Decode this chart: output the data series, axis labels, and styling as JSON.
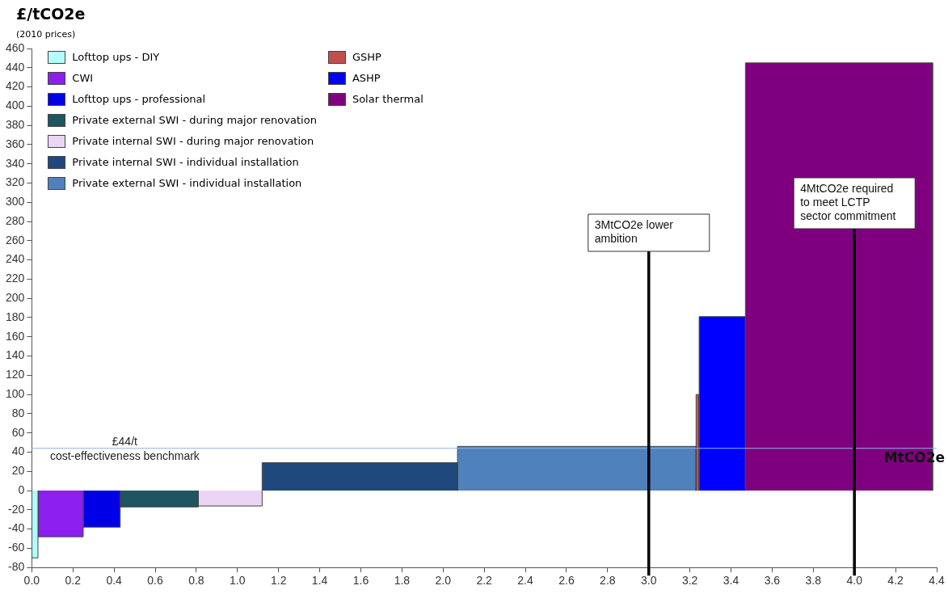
{
  "chart_data": {
    "type": "histogram",
    "ylabel": "£/tCO2e",
    "subtitle": "(2010 prices)",
    "xlabel": "MtCO2e",
    "xlim": [
      0,
      4.4
    ],
    "xticks": [
      {
        "value": 0,
        "label": "0.0"
      },
      {
        "value": 0.2,
        "label": "0.2"
      },
      {
        "value": 0.4,
        "label": "0.4"
      },
      {
        "value": 0.6,
        "label": "0.6"
      },
      {
        "value": 0.8,
        "label": "0.8"
      },
      {
        "value": 1,
        "label": "1.0"
      },
      {
        "value": 1.2,
        "label": "1.2"
      },
      {
        "value": 1.4,
        "label": "1.4"
      },
      {
        "value": 1.6,
        "label": "1.6"
      },
      {
        "value": 1.8,
        "label": "1.8"
      },
      {
        "value": 2,
        "label": "2.0"
      },
      {
        "value": 2.2,
        "label": "2.2"
      },
      {
        "value": 2.4,
        "label": "2.4"
      },
      {
        "value": 2.6,
        "label": "2.6"
      },
      {
        "value": 2.8,
        "label": "2.8"
      },
      {
        "value": 3,
        "label": "3.0"
      },
      {
        "value": 3.2,
        "label": "3.2"
      },
      {
        "value": 3.4,
        "label": "3.4"
      },
      {
        "value": 3.6,
        "label": "3.6"
      },
      {
        "value": 3.8,
        "label": "3.8"
      },
      {
        "value": 4,
        "label": "4.0"
      },
      {
        "value": 4.2,
        "label": "4.2"
      },
      {
        "value": 4.4,
        "label": "4.4"
      }
    ],
    "ylim": [
      -80,
      460
    ],
    "yticks": [
      -80,
      -60,
      -40,
      -20,
      0,
      20,
      40,
      60,
      80,
      100,
      120,
      140,
      160,
      180,
      200,
      220,
      240,
      260,
      280,
      300,
      320,
      340,
      360,
      380,
      400,
      420,
      440,
      460
    ],
    "legend": "top left",
    "bins": [
      0,
      0.03,
      0.25,
      0.43,
      0.81,
      1.12,
      2.07,
      3.23,
      3.245,
      3.47,
      4.38
    ],
    "series": [
      {
        "name": "Lofttop ups - DIY",
        "color": "#b3fcfc",
        "values": [
          -70,
          null,
          null,
          null,
          null,
          null,
          null,
          null,
          null,
          null
        ]
      },
      {
        "name": "CWI",
        "color": "#8c1ff0",
        "values": [
          null,
          -48,
          null,
          null,
          null,
          null,
          null,
          null,
          null,
          null
        ]
      },
      {
        "name": "Lofttop ups - professional",
        "color": "#0000e6",
        "values": [
          null,
          null,
          -38,
          null,
          null,
          null,
          null,
          null,
          null,
          null
        ]
      },
      {
        "name": "Private external SWI - during major renovation",
        "color": "#1f5461",
        "values": [
          null,
          null,
          null,
          -17,
          null,
          null,
          null,
          null,
          null,
          null
        ]
      },
      {
        "name": "Private internal SWI - during major renovation",
        "color": "#ead5f5",
        "values": [
          null,
          null,
          null,
          null,
          -16,
          null,
          null,
          null,
          null,
          null
        ]
      },
      {
        "name": "Private internal SWI - individual installation",
        "color": "#1f497d",
        "values": [
          null,
          null,
          null,
          null,
          null,
          29,
          null,
          null,
          null,
          null
        ]
      },
      {
        "name": "Private external SWI - individual installation",
        "color": "#4f81bd",
        "values": [
          null,
          null,
          null,
          null,
          null,
          null,
          46,
          null,
          null,
          null
        ]
      },
      {
        "name": "GSHP",
        "color": "#c0504d",
        "values": [
          null,
          null,
          null,
          null,
          null,
          null,
          null,
          100,
          null,
          null
        ]
      },
      {
        "name": "ASHP",
        "color": "#0000ff",
        "values": [
          null,
          null,
          null,
          null,
          null,
          null,
          null,
          null,
          181,
          null
        ]
      },
      {
        "name": "Solar thermal",
        "color": "#7f007f",
        "values": [
          null,
          null,
          null,
          null,
          null,
          null,
          null,
          null,
          null,
          445
        ]
      }
    ],
    "ref_lines": [
      {
        "axis": "y",
        "value": 44,
        "label": "£44/t\ncost-effectiveness benchmark",
        "color": "#8fb4e3"
      },
      {
        "axis": "x",
        "value": 3,
        "label": "3MtCO2e lower ambition",
        "color": "#000000"
      },
      {
        "axis": "x",
        "value": 4,
        "label": "4MtCO2e required to meet LCTP sector commitment",
        "color": "#000000"
      }
    ]
  }
}
